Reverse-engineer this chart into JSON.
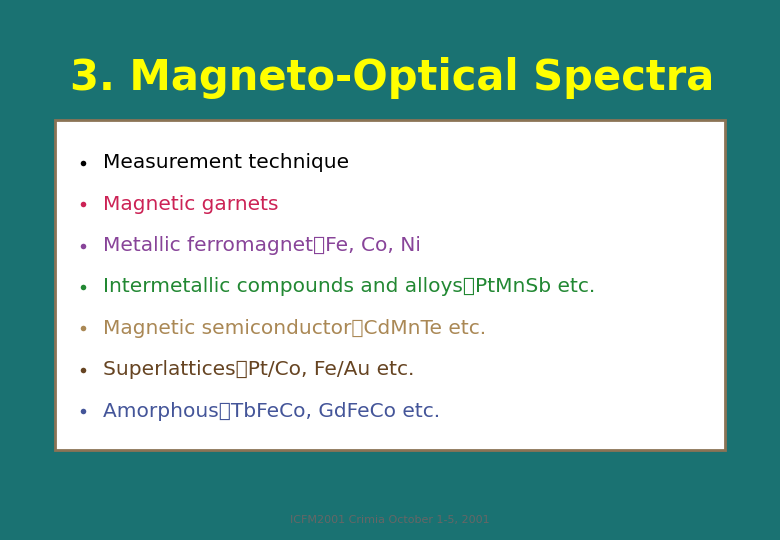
{
  "title": "3. Magneto-Optical Spectra",
  "title_color": "#FFFF00",
  "background_color": "#1a7272",
  "box_bg_color": "#ffffff",
  "box_border_color": "#8B7355",
  "footer": "ICFM2001 Crimia October 1-5, 2001",
  "footer_color": "#666666",
  "bullet_items": [
    {
      "text": "Measurement technique",
      "color": "#000000"
    },
    {
      "text": "Magnetic garnets",
      "color": "#cc2255"
    },
    {
      "text": "Metallic ferromagnet：Fe, Co, Ni",
      "color": "#884499"
    },
    {
      "text": "Intermetallic compounds and alloys：PtMnSb etc.",
      "color": "#228833"
    },
    {
      "text": "Magnetic semiconductor：CdMnTe etc.",
      "color": "#aa8855"
    },
    {
      "text": "Superlattices：Pt/Co, Fe/Au etc.",
      "color": "#664422"
    },
    {
      "text": "Amorphous：TbFeCo, GdFeCo etc.",
      "color": "#445599"
    }
  ]
}
